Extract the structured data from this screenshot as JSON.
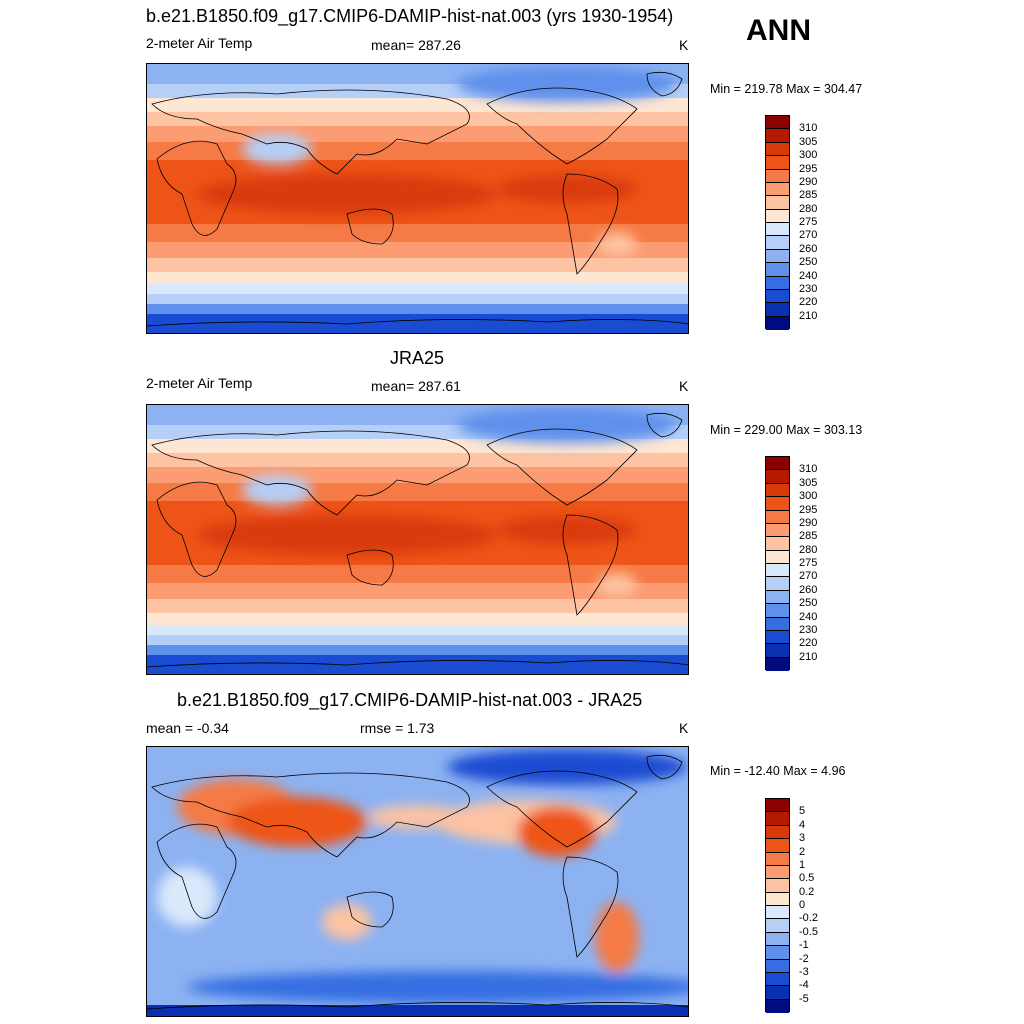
{
  "header": {
    "season": "ANN"
  },
  "panels": [
    {
      "title": "b.e21.B1850.f09_g17.CMIP6-DAMIP-hist-nat.003 (yrs 1930-1954)",
      "left_label": "2-meter Air Temp",
      "center_label": "mean= 287.26",
      "units": "K",
      "minmax": "Min = 219.78 Max = 304.47",
      "kind": "abs"
    },
    {
      "title": "JRA25",
      "left_label": "2-meter Air Temp",
      "center_label": "mean= 287.61",
      "units": "K",
      "minmax": "Min = 229.00 Max = 303.13",
      "kind": "abs"
    },
    {
      "title": "b.e21.B1850.f09_g17.CMIP6-DAMIP-hist-nat.003 - JRA25",
      "left_label": "mean =  -0.34",
      "center_label": "rmse =   1.73",
      "units": "K",
      "minmax": "Min = -12.40 Max =   4.96",
      "kind": "diff"
    }
  ],
  "colorbars": {
    "abs": {
      "labels": [
        "310",
        "305",
        "300",
        "295",
        "290",
        "285",
        "280",
        "275",
        "270",
        "260",
        "250",
        "240",
        "230",
        "220",
        "210"
      ],
      "colors": [
        "#8b0000",
        "#b51a00",
        "#d93a0a",
        "#ee5418",
        "#f57a45",
        "#fb9c72",
        "#fdc3a2",
        "#fde6d2",
        "#d9e8fb",
        "#b6cff7",
        "#8cb2f2",
        "#5f90ec",
        "#366ee2",
        "#1a4cd2",
        "#0a2fb0",
        "#000b80"
      ]
    },
    "diff": {
      "labels": [
        "5",
        "4",
        "3",
        "2",
        "1",
        "0.5",
        "0.2",
        "0",
        "-0.2",
        "-0.5",
        "-1",
        "-2",
        "-3",
        "-4",
        "-5"
      ],
      "colors": [
        "#8b0000",
        "#b51a00",
        "#d93a0a",
        "#ee5418",
        "#f57a45",
        "#fb9c72",
        "#fdc3a2",
        "#fde6d2",
        "#d9e8fb",
        "#b6cff7",
        "#8cb2f2",
        "#5f90ec",
        "#366ee2",
        "#1a4cd2",
        "#0a2fb0",
        "#000b80"
      ]
    }
  }
}
